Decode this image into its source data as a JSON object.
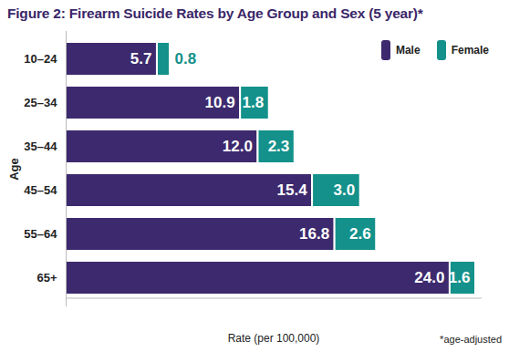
{
  "chart_data": {
    "type": "bar",
    "title": "Figure 2: Firearm Suicide Rates by Age Group and Sex (5 year)*",
    "x_label": "Rate (per 100,000)",
    "y_label": "Age",
    "footnote": "*age-adjusted",
    "orientation": "horizontal",
    "stacked": true,
    "data_labels": true,
    "tick_labels": "y",
    "grid": false,
    "legend": "top-right",
    "categories": [
      "10–24",
      "25–34",
      "35–44",
      "45–54",
      "55–64",
      "65+"
    ],
    "xlim": [
      0,
      26
    ],
    "series": [
      {
        "name": "Male",
        "color": "#3d2a6e",
        "values": [
          5.7,
          10.9,
          12.0,
          15.4,
          16.8,
          24.0
        ],
        "value_labels": [
          "5.7",
          "10.9",
          "12.0",
          "15.4",
          "16.8",
          "24.0"
        ]
      },
      {
        "name": "Female",
        "color": "#13918a",
        "values": [
          0.8,
          1.8,
          2.3,
          3.0,
          2.6,
          1.6
        ],
        "value_labels": [
          "0.8",
          "1.8",
          "2.3",
          "3.0",
          "2.6",
          "1.6"
        ]
      }
    ]
  }
}
